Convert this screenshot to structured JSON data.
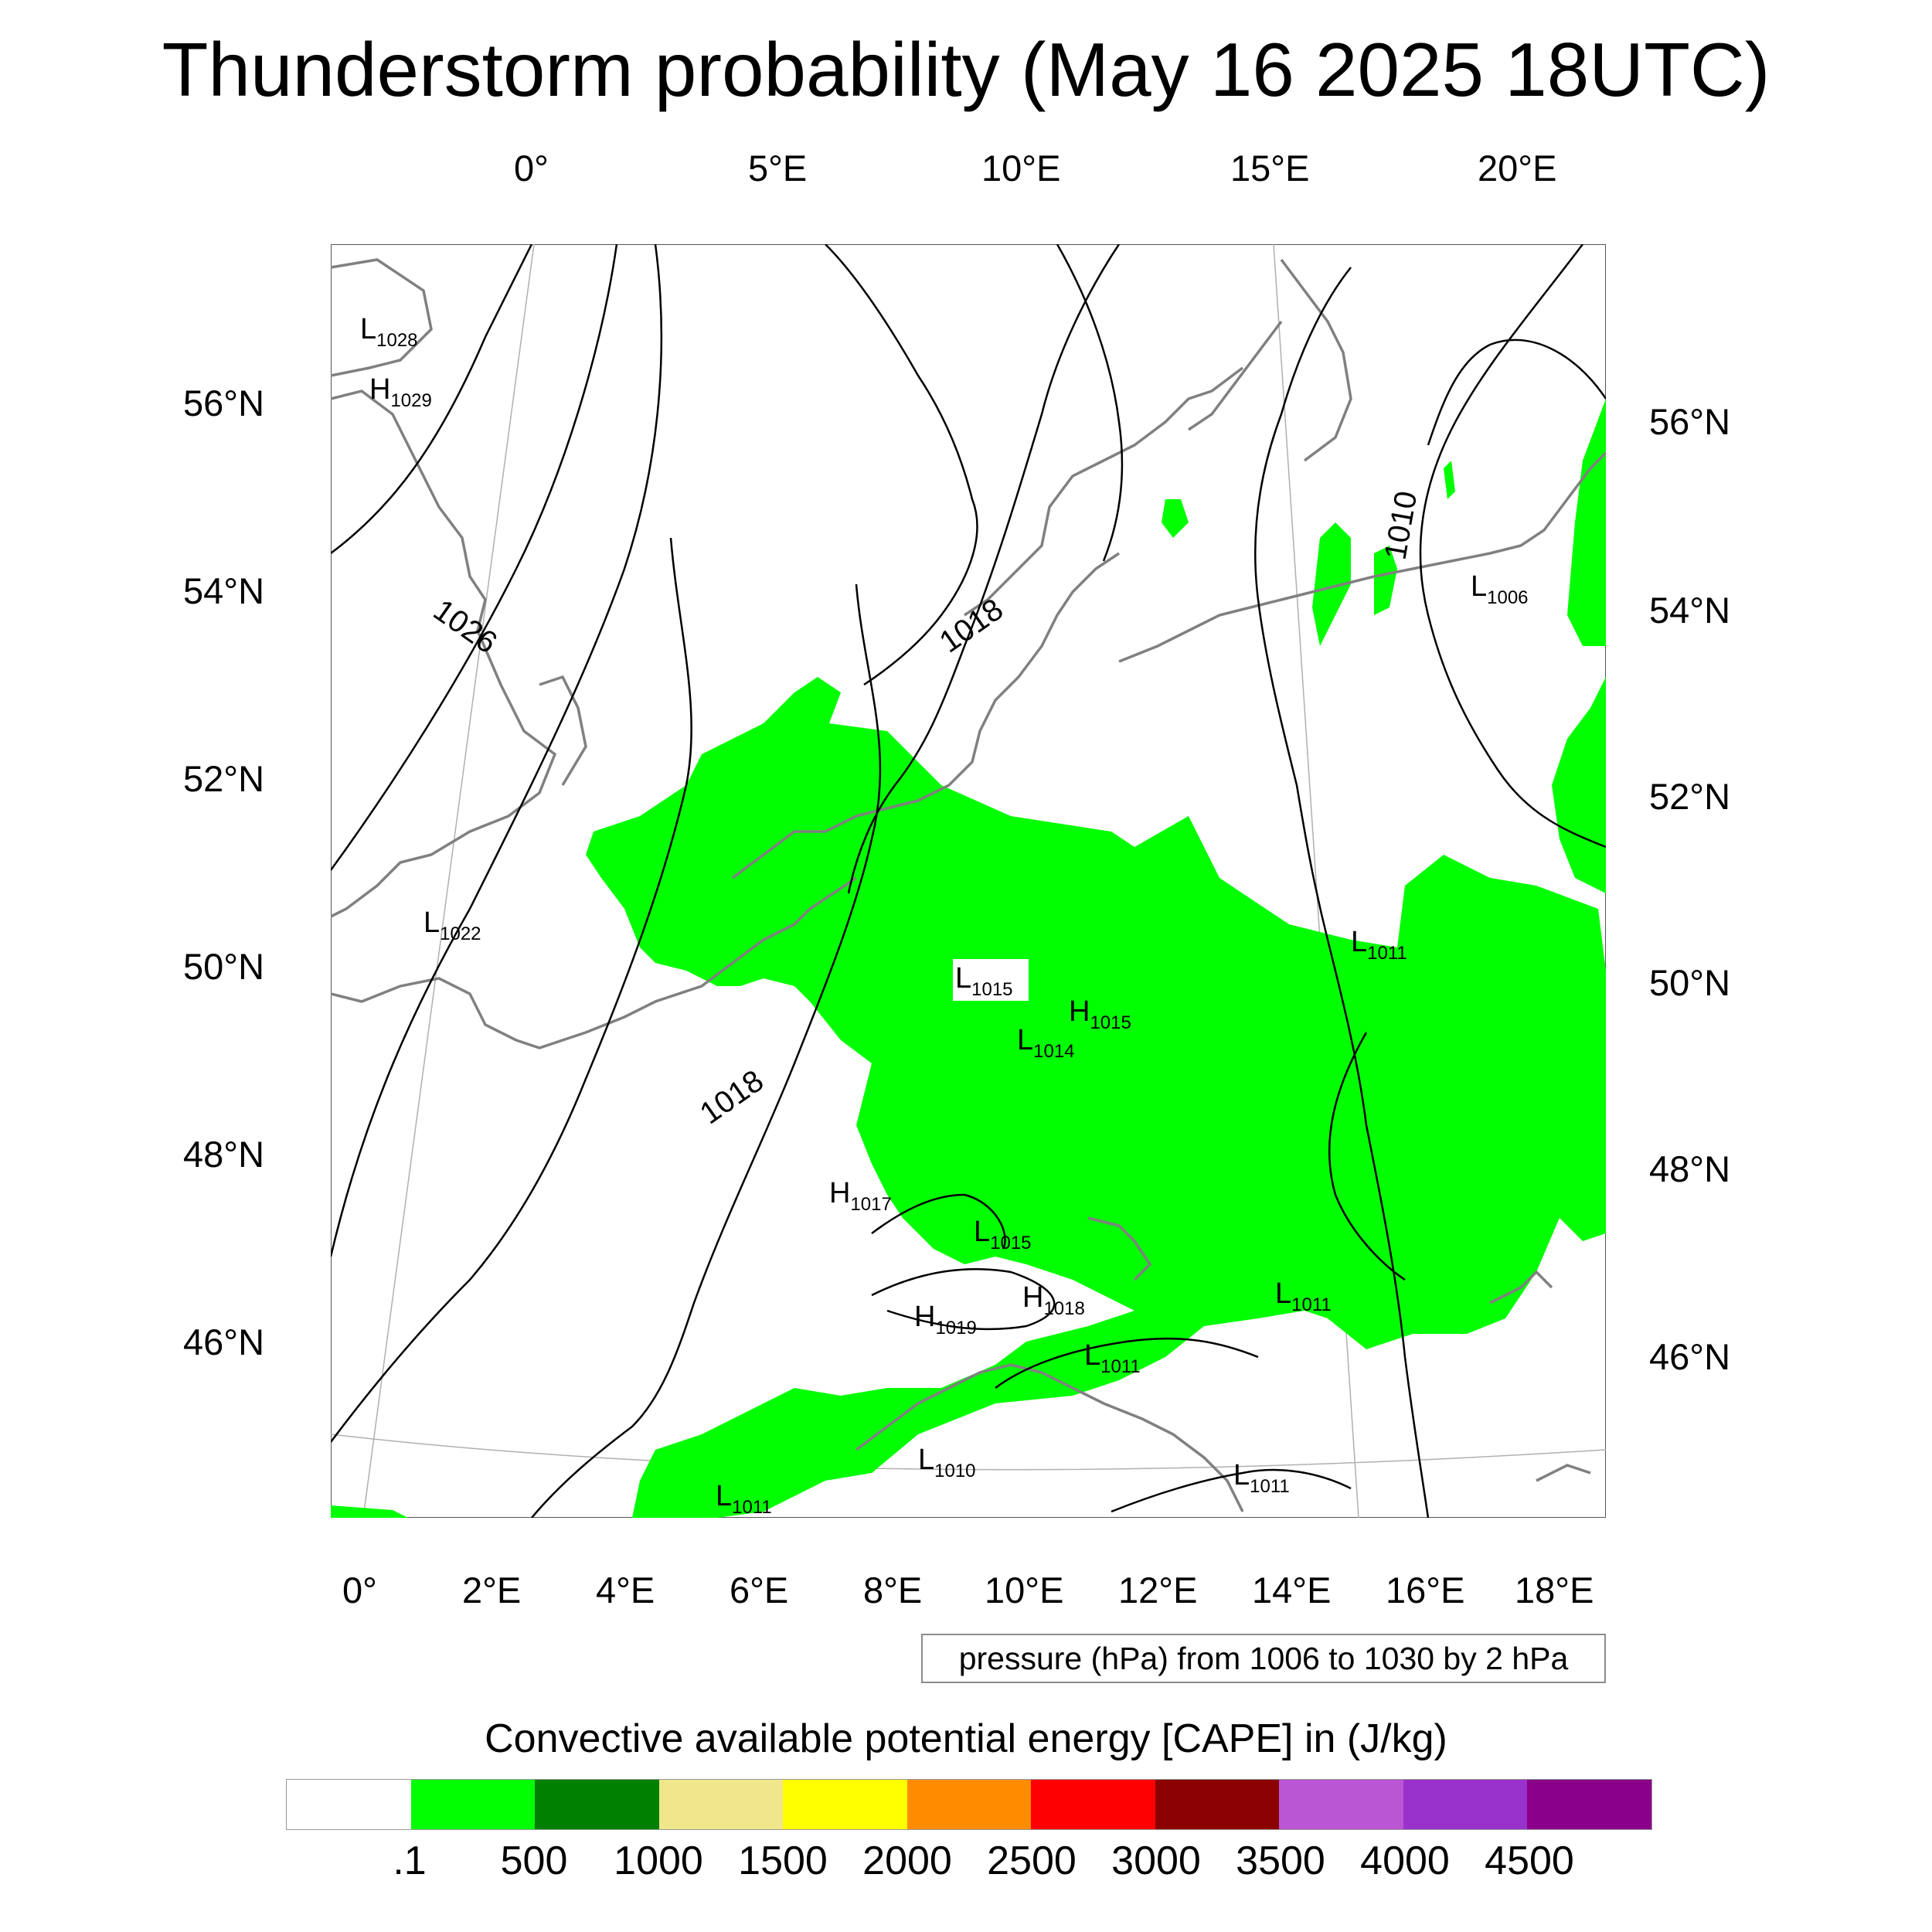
{
  "title": "Thunderstorm probability (May 16 2025 18UTC)",
  "axes": {
    "top_lon": [
      "0°",
      "5°E",
      "10°E",
      "15°E",
      "20°E"
    ],
    "bottom_lon": [
      "0°",
      "2°E",
      "4°E",
      "6°E",
      "8°E",
      "10°E",
      "12°E",
      "14°E",
      "16°E",
      "18°E"
    ],
    "left_lat": [
      "56°N",
      "54°N",
      "52°N",
      "50°N",
      "48°N",
      "46°N"
    ],
    "right_lat": [
      "56°N",
      "54°N",
      "52°N",
      "50°N",
      "48°N",
      "46°N"
    ]
  },
  "contour_labels": [
    "1026",
    "1018",
    "1018",
    "1010"
  ],
  "pressure_centers": [
    {
      "type": "L",
      "value": "1028"
    },
    {
      "type": "H",
      "value": "1029"
    },
    {
      "type": "L",
      "value": "1022"
    },
    {
      "type": "L",
      "value": "1006"
    },
    {
      "type": "L",
      "value": "1011"
    },
    {
      "type": "L",
      "value": "1015"
    },
    {
      "type": "H",
      "value": "1015"
    },
    {
      "type": "L",
      "value": "1014"
    },
    {
      "type": "H",
      "value": "1017"
    },
    {
      "type": "L",
      "value": "1015"
    },
    {
      "type": "H",
      "value": "1019"
    },
    {
      "type": "H",
      "value": "1018"
    },
    {
      "type": "L",
      "value": "1011"
    },
    {
      "type": "L",
      "value": "1011"
    },
    {
      "type": "L",
      "value": "1010"
    },
    {
      "type": "L",
      "value": "1011"
    },
    {
      "type": "L",
      "value": "1011"
    }
  ],
  "pressure_note": "pressure (hPa) from 1006 to 1030 by 2 hPa",
  "colorbar": {
    "title": "Convective available potential energy [CAPE] in (J/kg)",
    "colors": [
      "#ffffff",
      "#00ff00",
      "#008000",
      "#f0e68c",
      "#ffff00",
      "#ff8c00",
      "#ff0000",
      "#8b0000",
      "#ba55d3",
      "#9932cc",
      "#8b008b"
    ],
    "labels": [
      ".1",
      "500",
      "1000",
      "1500",
      "2000",
      "2500",
      "3000",
      "3500",
      "4000",
      "4500"
    ]
  },
  "colors": {
    "cape_fill": "#00ff00",
    "coastline": "#808080",
    "isobar": "#000000"
  }
}
